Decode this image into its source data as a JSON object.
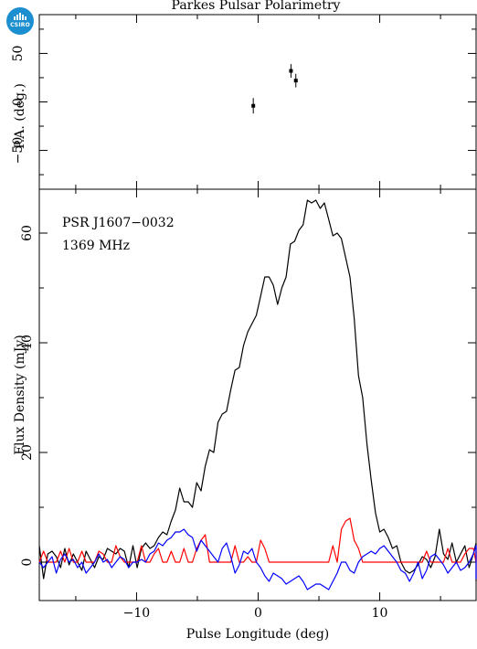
{
  "logo": {
    "text": "CSIRO",
    "color": "#1b8fd0"
  },
  "chart_data": [
    {
      "type": "scatter",
      "title": "Parkes Pulsar Polarimetry",
      "ylabel": "P.A. (deg.)",
      "xlim": [
        -18,
        18
      ],
      "ylim": [
        -90,
        90
      ],
      "yticks": [
        -50,
        0,
        50
      ],
      "points": [
        {
          "x": -0.4,
          "y": -4,
          "yerr": 8
        },
        {
          "x": 2.7,
          "y": 32,
          "yerr": 7
        },
        {
          "x": 3.1,
          "y": 22,
          "yerr": 7
        }
      ]
    },
    {
      "type": "line",
      "xlabel": "Pulse Longitude (deg)",
      "ylabel": "Flux Density (mJy)",
      "xlim": [
        -18,
        18
      ],
      "ylim": [
        -7,
        68
      ],
      "xticks": [
        -10,
        0,
        10
      ],
      "yticks": [
        0,
        20,
        40,
        60
      ],
      "annotations": [
        "PSR J1607−0032",
        "1369 MHz"
      ],
      "x_start": -18,
      "x_step": 0.35,
      "series": [
        {
          "color": "#000000",
          "values": [
            3.0,
            -3.0,
            1.5,
            2.0,
            1.0,
            -1.0,
            2.5,
            -0.5,
            1.5,
            0.0,
            -1.5,
            2.0,
            0.5,
            -1.0,
            1.0,
            0.5,
            2.5,
            2.0,
            1.5,
            2.5,
            2.0,
            -1.0,
            3.0,
            -1.0,
            2.5,
            3.5,
            2.5,
            3.0,
            4.5,
            5.5,
            5.0,
            7.5,
            9.5,
            13.5,
            11.0,
            11.0,
            10.0,
            14.5,
            13.0,
            17.5,
            20.5,
            20.0,
            25.5,
            27.0,
            27.5,
            31.5,
            35.0,
            35.5,
            39.5,
            42.0,
            43.5,
            45.0,
            48.5,
            52.0,
            52.0,
            50.5,
            47.0,
            50.0,
            52.0,
            58.0,
            58.5,
            60.5,
            61.5,
            66.0,
            65.5,
            66.0,
            64.5,
            65.5,
            62.5,
            59.5,
            60.0,
            59.0,
            55.5,
            52.0,
            44.5,
            34.0,
            30.0,
            21.5,
            15.0,
            9.0,
            5.5,
            6.0,
            4.5,
            2.5,
            3.0,
            0.0,
            -1.5,
            -2.0,
            -1.5,
            -0.5,
            1.0,
            0.5,
            -1.0,
            1.0,
            6.0,
            1.5,
            0.5,
            3.5,
            0.0,
            1.5,
            3.0,
            -1.0,
            1.5,
            3.5,
            2.0,
            -1.5,
            1.0,
            -0.5,
            0.0,
            3.0,
            -0.5,
            0.5,
            -1.0,
            -1.5,
            -1.0,
            1.5,
            0.5,
            -0.5,
            -1.5,
            -0.5,
            -1.0,
            1.5,
            -1.5,
            2.0,
            0.0,
            -1.0,
            -2.5,
            -3.5
          ]
        },
        {
          "color": "#ff0000",
          "values": [
            0.0,
            2.0,
            0.0,
            0.0,
            0.0,
            2.0,
            0.0,
            2.5,
            0.0,
            0.0,
            2.0,
            0.0,
            0.0,
            0.0,
            2.0,
            1.5,
            0.0,
            0.0,
            3.0,
            1.0,
            0.0,
            0.0,
            0.0,
            0.0,
            3.0,
            0.0,
            0.0,
            1.5,
            2.5,
            0.0,
            0.0,
            2.0,
            0.0,
            0.0,
            2.5,
            0.0,
            0.0,
            2.5,
            4.0,
            5.0,
            0.0,
            0.0,
            0.0,
            0.0,
            0.0,
            0.0,
            3.0,
            0.0,
            0.0,
            1.0,
            0.0,
            0.0,
            4.0,
            2.5,
            0.0,
            0.0,
            0.0,
            0.0,
            0.0,
            0.0,
            0.0,
            0.0,
            0.0,
            0.0,
            0.0,
            0.0,
            0.0,
            0.0,
            0.0,
            3.0,
            0.0,
            6.0,
            7.5,
            8.0,
            4.0,
            2.5,
            0.0,
            0.0,
            0.0,
            0.0,
            0.0,
            0.0,
            0.0,
            0.0,
            0.0,
            0.0,
            0.0,
            0.0,
            0.0,
            0.0,
            0.0,
            2.0,
            0.0,
            0.0,
            0.0,
            0.0,
            2.5,
            0.0,
            0.0,
            0.0,
            1.5,
            2.5,
            2.5,
            0.0,
            0.0,
            0.0,
            0.0,
            0.0,
            0.0,
            0.0,
            0.0,
            0.0,
            0.0,
            0.0,
            0.0,
            0.0,
            0.0,
            0.0,
            0.0,
            0.0,
            2.0,
            0.0,
            0.0,
            0.0,
            0.0,
            0.0,
            0.0,
            0.0,
            0.0
          ]
        },
        {
          "color": "#0000ff",
          "values": [
            0.0,
            -1.0,
            0.0,
            1.0,
            -2.0,
            0.5,
            1.5,
            0.0,
            0.5,
            -1.0,
            0.0,
            -2.0,
            -1.0,
            0.0,
            1.5,
            0.0,
            0.5,
            -1.0,
            0.0,
            1.0,
            0.5,
            -1.0,
            0.0,
            0.0,
            0.5,
            0.0,
            1.5,
            2.0,
            3.5,
            3.0,
            4.0,
            4.5,
            5.5,
            5.5,
            6.0,
            5.0,
            4.5,
            2.0,
            4.0,
            3.0,
            2.0,
            1.0,
            0.0,
            2.5,
            3.5,
            1.0,
            -2.0,
            -0.5,
            2.0,
            1.5,
            2.5,
            0.0,
            -1.0,
            -2.5,
            -3.5,
            -2.0,
            -2.5,
            -3.0,
            -4.0,
            -3.5,
            -3.0,
            -2.5,
            -3.5,
            -5.0,
            -4.5,
            -4.0,
            -4.0,
            -4.5,
            -5.0,
            -3.5,
            -2.0,
            0.0,
            0.0,
            -1.5,
            -2.0,
            0.0,
            1.0,
            1.5,
            2.0,
            1.5,
            2.5,
            3.0,
            2.0,
            1.0,
            0.0,
            -1.5,
            -2.0,
            -3.5,
            -2.0,
            0.0,
            -3.0,
            -1.5,
            1.0,
            1.5,
            0.5,
            -0.5,
            -2.0,
            -1.0,
            0.0,
            -1.5,
            -1.0,
            0.0,
            1.5,
            3.0,
            3.0,
            0.0,
            -1.5,
            0.0,
            -2.0,
            -3.0,
            0.0,
            1.0,
            -1.5,
            0.0,
            0.0,
            -2.0,
            -1.5,
            -0.5,
            -2.0,
            -1.0,
            0.0,
            -1.5,
            0.0,
            -2.0,
            -0.5,
            0.0,
            -1.0,
            -1.5,
            -1.0
          ]
        }
      ]
    }
  ]
}
